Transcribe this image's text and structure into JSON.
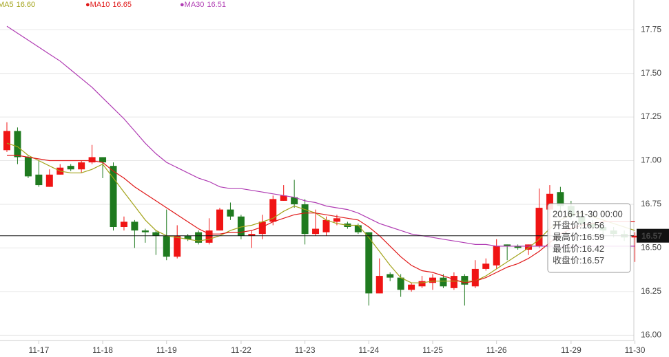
{
  "chart_data": {
    "type": "candlestick",
    "categories": [
      null,
      null,
      null,
      "11-17",
      null,
      null,
      null,
      null,
      null,
      "11-18",
      null,
      null,
      null,
      null,
      null,
      "11-19",
      null,
      null,
      null,
      null,
      null,
      null,
      "11-22",
      null,
      null,
      null,
      null,
      null,
      "11-23",
      null,
      null,
      null,
      null,
      null,
      "11-24",
      null,
      null,
      null,
      null,
      null,
      "11-25",
      null,
      null,
      null,
      null,
      null,
      "11-26",
      null,
      null,
      null,
      null,
      null,
      null,
      "11-29",
      null,
      null,
      null,
      null,
      null,
      "11-30"
    ],
    "open": [
      17.06,
      17.17,
      17.02,
      16.92,
      16.85,
      16.92,
      16.97,
      16.95,
      16.99,
      17.02,
      16.97,
      16.62,
      16.65,
      16.6,
      16.59,
      16.57,
      16.45,
      16.57,
      16.59,
      16.53,
      16.6,
      16.72,
      16.68,
      16.57,
      16.58,
      16.65,
      16.77,
      16.79,
      16.75,
      16.58,
      16.59,
      16.65,
      16.64,
      16.63,
      16.59,
      16.24,
      16.35,
      16.33,
      16.26,
      16.28,
      16.3,
      16.33,
      16.27,
      16.34,
      16.28,
      16.38,
      16.4,
      16.52,
      16.51,
      16.49,
      16.51,
      16.72,
      16.82,
      16.74,
      16.68,
      16.64,
      16.62,
      16.6,
      16.58,
      16.56
    ],
    "high": [
      17.22,
      17.19,
      17.03,
      17.0,
      16.95,
      16.98,
      16.98,
      17.0,
      17.09,
      17.02,
      16.99,
      16.68,
      16.66,
      16.61,
      16.6,
      16.72,
      16.63,
      16.58,
      16.6,
      16.67,
      16.73,
      16.76,
      16.69,
      16.6,
      16.69,
      16.8,
      16.86,
      16.89,
      16.78,
      16.72,
      16.68,
      16.69,
      16.65,
      16.64,
      16.59,
      16.44,
      16.36,
      16.35,
      16.3,
      16.34,
      16.35,
      16.35,
      16.36,
      16.35,
      16.43,
      16.44,
      16.55,
      16.52,
      16.52,
      16.52,
      16.84,
      16.86,
      16.85,
      16.77,
      16.7,
      16.66,
      16.64,
      16.62,
      16.6,
      16.59
    ],
    "low": [
      17.05,
      16.98,
      16.9,
      16.85,
      16.85,
      16.92,
      16.94,
      16.93,
      16.98,
      16.9,
      16.6,
      16.6,
      16.5,
      16.53,
      16.46,
      16.43,
      16.44,
      16.54,
      16.52,
      16.52,
      16.6,
      16.66,
      16.55,
      16.5,
      16.55,
      16.63,
      16.77,
      16.73,
      16.52,
      16.57,
      16.57,
      16.63,
      16.61,
      16.58,
      16.17,
      16.24,
      16.31,
      16.22,
      16.25,
      16.27,
      16.26,
      16.27,
      16.26,
      16.17,
      16.27,
      16.37,
      16.38,
      16.43,
      16.49,
      16.46,
      16.5,
      16.5,
      16.7,
      16.66,
      16.62,
      16.6,
      16.58,
      16.56,
      16.54,
      16.42
    ],
    "close": [
      17.17,
      17.02,
      16.91,
      16.86,
      16.92,
      16.96,
      16.95,
      16.99,
      17.02,
      16.99,
      16.62,
      16.65,
      16.6,
      16.59,
      16.57,
      16.45,
      16.57,
      16.55,
      16.53,
      16.6,
      16.72,
      16.68,
      16.57,
      16.58,
      16.65,
      16.78,
      16.8,
      16.75,
      16.58,
      16.61,
      16.66,
      16.67,
      16.62,
      16.59,
      16.24,
      16.34,
      16.33,
      16.26,
      16.29,
      16.31,
      16.33,
      16.28,
      16.34,
      16.29,
      16.38,
      16.41,
      16.51,
      16.51,
      16.5,
      16.52,
      16.73,
      16.81,
      16.74,
      16.68,
      16.64,
      16.62,
      16.6,
      16.58,
      16.56,
      16.57
    ],
    "up_color": "#f01414",
    "down_color": "#1f7a1f",
    "series": [
      {
        "name": "MA5",
        "color": "#a3a31a",
        "value_label": "16.60",
        "values": [
          17.1,
          17.08,
          17.03,
          17.0,
          16.97,
          16.94,
          16.93,
          16.93,
          16.95,
          16.98,
          16.9,
          16.82,
          16.74,
          16.66,
          16.6,
          16.57,
          16.56,
          16.55,
          16.54,
          16.55,
          16.57,
          16.6,
          16.62,
          16.63,
          16.65,
          16.67,
          16.71,
          16.74,
          16.72,
          16.7,
          16.66,
          16.64,
          16.63,
          16.63,
          16.56,
          16.48,
          16.4,
          16.33,
          16.3,
          16.3,
          16.31,
          16.31,
          16.31,
          16.31,
          16.31,
          16.34,
          16.38,
          16.42,
          16.46,
          16.5,
          16.55,
          16.61,
          16.66,
          16.69,
          16.7,
          16.68,
          16.66,
          16.64,
          16.62,
          16.6
        ]
      },
      {
        "name": "MA10",
        "color": "#e01818",
        "value_label": "16.65",
        "values": [
          17.03,
          17.03,
          17.02,
          17.01,
          17.0,
          17.0,
          17.0,
          17.0,
          17.0,
          16.99,
          16.94,
          16.9,
          16.85,
          16.81,
          16.77,
          16.73,
          16.69,
          16.65,
          16.61,
          16.58,
          16.58,
          16.59,
          16.59,
          16.6,
          16.62,
          16.65,
          16.67,
          16.69,
          16.7,
          16.7,
          16.69,
          16.68,
          16.67,
          16.66,
          16.62,
          16.57,
          16.51,
          16.45,
          16.4,
          16.37,
          16.36,
          16.34,
          16.32,
          16.3,
          16.31,
          16.33,
          16.36,
          16.39,
          16.41,
          16.44,
          16.48,
          16.53,
          16.58,
          16.61,
          16.63,
          16.64,
          16.65,
          16.65,
          16.65,
          16.65
        ]
      },
      {
        "name": "MA30",
        "color": "#b03cb3",
        "value_label": "16.51",
        "values": [
          17.77,
          17.73,
          17.69,
          17.65,
          17.61,
          17.57,
          17.52,
          17.47,
          17.42,
          17.36,
          17.3,
          17.24,
          17.17,
          17.1,
          17.04,
          16.99,
          16.96,
          16.93,
          16.9,
          16.88,
          16.85,
          16.84,
          16.84,
          16.83,
          16.82,
          16.81,
          16.8,
          16.79,
          16.77,
          16.76,
          16.74,
          16.73,
          16.72,
          16.7,
          16.67,
          16.64,
          16.62,
          16.6,
          16.58,
          16.57,
          16.56,
          16.55,
          16.54,
          16.53,
          16.52,
          16.52,
          16.51,
          16.51,
          16.51,
          16.51,
          16.51,
          16.51,
          16.51,
          16.51,
          16.51,
          16.51,
          16.51,
          16.51,
          16.51,
          16.51
        ]
      }
    ],
    "ylim": [
      15.97,
      17.92
    ],
    "yticks": [
      {
        "value": 16,
        "label": "16.00"
      },
      16.25,
      {
        "value": 16.5,
        "label": "16.50"
      },
      16.75,
      {
        "value": 17,
        "label": "17.00"
      },
      17.25,
      {
        "value": 17.5,
        "label": "17.50"
      },
      17.75
    ],
    "grid": true,
    "last_price": 16.57,
    "tooltip": {
      "time": "2016-11-30 00:00",
      "items": [
        {
          "label": "开盘价:",
          "value": 16.56
        },
        {
          "label": "最高价:",
          "value": 16.59
        },
        {
          "label": "最低价:",
          "value": 16.42
        },
        {
          "label": "收盘价:",
          "value": 16.57
        }
      ]
    }
  }
}
